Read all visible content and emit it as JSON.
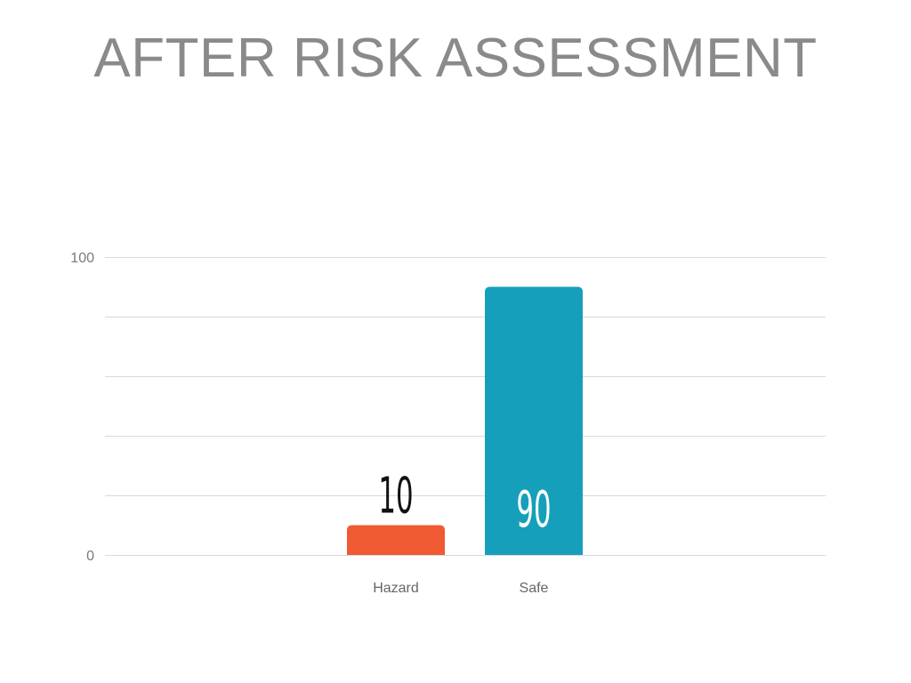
{
  "slide": {
    "title": "AFTER RISK ASSESSMENT"
  },
  "chart_data": {
    "type": "bar",
    "title": "AFTER RISK ASSESSMENT",
    "categories": [
      "Hazard",
      "Safe"
    ],
    "values": [
      10,
      90
    ],
    "data_labels": [
      "10",
      "90"
    ],
    "colors": [
      "#f05a32",
      "#169fba"
    ],
    "data_label_colors": [
      "#111111",
      "#ffffff"
    ],
    "ylim": [
      0,
      100
    ],
    "y_tick_labels": [
      "0",
      "100"
    ],
    "gridline_count": 5,
    "grid": true,
    "legend": "none",
    "grid_color": "#d9d9d9",
    "xlabel": "",
    "ylabel": ""
  }
}
